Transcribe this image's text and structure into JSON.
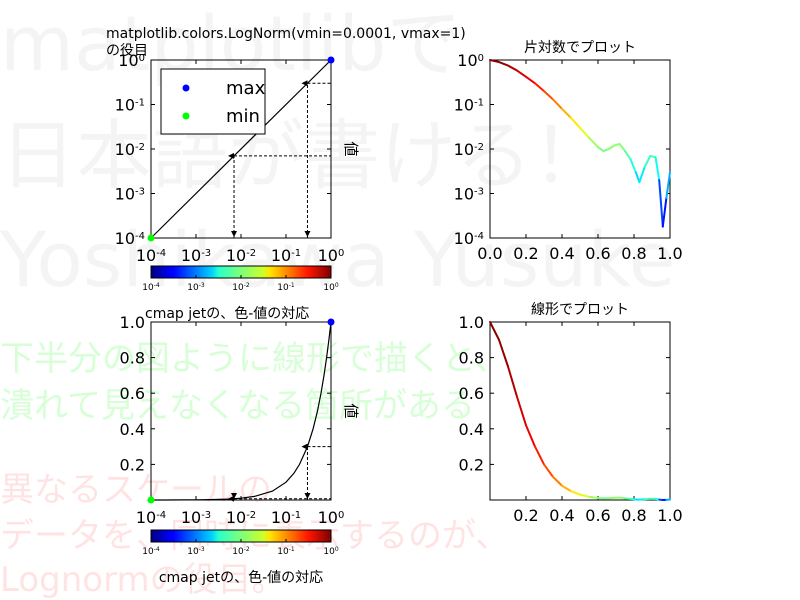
{
  "watermarks": {
    "big": [
      "matplotlibで",
      "日本語が書ける！",
      "Yoshikawa Yusuke"
    ],
    "green": [
      "下半分の図ように線形で描くと、",
      "潰れて見えなくなる箇所がある"
    ],
    "red": [
      "異なるスケールの",
      "データを、同時に表示するのが、",
      "Lognormの役目。"
    ]
  },
  "colors": {
    "marker_max": "#0000ff",
    "marker_min": "#00ff00"
  },
  "chart_data": [
    {
      "id": "log-map",
      "type": "line",
      "title": "matplotlib.colors.LogNorm(vmin=0.0001, vmax=1)",
      "title2": "の役目",
      "xscale": "log",
      "yscale": "log",
      "xlim": [
        0.0001,
        1
      ],
      "ylim": [
        0.0001,
        1
      ],
      "xticks": [
        0.0001,
        0.001,
        0.01,
        0.1,
        1
      ],
      "yticks": [
        0.0001,
        0.001,
        0.01,
        0.1,
        1
      ],
      "series": [
        {
          "x": [
            0.0001,
            1
          ],
          "y": [
            0.0001,
            1
          ]
        }
      ],
      "scatter": [
        {
          "name": "max",
          "x": 1,
          "y": 1,
          "color": "#0000ff"
        },
        {
          "name": "min",
          "x": 0.0001,
          "y": 0.0001,
          "color": "#00ff00"
        }
      ],
      "guides": [
        {
          "x": 0.007,
          "y": 0.007
        },
        {
          "x": 0.3,
          "y": 0.3
        }
      ],
      "legend": {
        "position": "upper-left",
        "entries": [
          "max",
          "min"
        ]
      },
      "ylabel": "値",
      "colorbar": {
        "ticks": [
          0.0001,
          0.001,
          0.01,
          0.1,
          1
        ],
        "label": ""
      }
    },
    {
      "id": "log-plot",
      "type": "line",
      "title": "片対数でプロット",
      "yscale": "log",
      "xlim": [
        0,
        1
      ],
      "ylim": [
        0.0001,
        1
      ],
      "xticks": [
        0,
        0.2,
        0.4,
        0.6,
        0.8,
        1
      ],
      "yticks": [
        0.0001,
        0.001,
        0.01,
        0.1,
        1
      ],
      "colormapped": true,
      "series": [
        {
          "x": [
            0,
            0.05,
            0.1,
            0.15,
            0.2,
            0.25,
            0.3,
            0.35,
            0.4,
            0.45,
            0.5,
            0.55,
            0.6,
            0.63,
            0.66,
            0.69,
            0.72,
            0.75,
            0.78,
            0.81,
            0.83,
            0.86,
            0.89,
            0.92,
            0.94,
            0.96,
            0.98,
            1.0
          ],
          "y": [
            1,
            0.9,
            0.75,
            0.58,
            0.42,
            0.3,
            0.2,
            0.13,
            0.08,
            0.05,
            0.03,
            0.018,
            0.011,
            0.009,
            0.01,
            0.012,
            0.013,
            0.009,
            0.006,
            0.003,
            0.0018,
            0.004,
            0.007,
            0.0065,
            0.002,
            0.00018,
            0.0008,
            0.003
          ]
        }
      ]
    },
    {
      "id": "linear-map",
      "type": "line",
      "title": "cmap jetの、色-値の対応",
      "xscale": "log",
      "xlim": [
        0.0001,
        1
      ],
      "ylim": [
        0,
        1
      ],
      "xticks": [
        0.0001,
        0.001,
        0.01,
        0.1,
        1
      ],
      "yticks": [
        0.2,
        0.4,
        0.6,
        0.8,
        1.0
      ],
      "series": [
        {
          "x": [
            0.0001,
            0.0002,
            0.0005,
            0.001,
            0.002,
            0.005,
            0.01,
            0.02,
            0.05,
            0.1,
            0.15,
            0.2,
            0.3,
            0.4,
            0.5,
            0.6,
            0.7,
            0.8,
            0.9,
            1
          ],
          "y": [
            0.0001,
            0.0002,
            0.0005,
            0.001,
            0.002,
            0.005,
            0.01,
            0.02,
            0.05,
            0.1,
            0.15,
            0.2,
            0.3,
            0.4,
            0.5,
            0.6,
            0.7,
            0.8,
            0.9,
            1
          ]
        }
      ],
      "scatter": [
        {
          "name": "max",
          "x": 1,
          "y": 1,
          "color": "#0000ff"
        },
        {
          "name": "min",
          "x": 0.0001,
          "y": 0.0001,
          "color": "#00ff00"
        }
      ],
      "guides": [
        {
          "x": 0.007,
          "y": 0.007
        },
        {
          "x": 0.3,
          "y": 0.3
        }
      ],
      "ylabel": "値",
      "colorbar": {
        "ticks": [
          0.0001,
          0.001,
          0.01,
          0.1,
          1
        ],
        "label": "cmap jetの、色-値の対応"
      }
    },
    {
      "id": "linear-plot",
      "type": "line",
      "title": "線形でプロット",
      "xlim": [
        0,
        1
      ],
      "ylim": [
        0,
        1
      ],
      "xticks": [
        0.2,
        0.4,
        0.6,
        0.8,
        1.0
      ],
      "yticks": [
        0.2,
        0.4,
        0.6,
        0.8,
        1.0
      ],
      "colormapped": true,
      "series": [
        {
          "x": [
            0,
            0.05,
            0.1,
            0.15,
            0.2,
            0.25,
            0.3,
            0.35,
            0.4,
            0.45,
            0.5,
            0.55,
            0.6,
            0.63,
            0.66,
            0.69,
            0.72,
            0.75,
            0.78,
            0.81,
            0.83,
            0.86,
            0.89,
            0.92,
            0.94,
            0.96,
            0.98,
            1.0
          ],
          "y": [
            1,
            0.9,
            0.75,
            0.58,
            0.42,
            0.3,
            0.2,
            0.13,
            0.08,
            0.05,
            0.03,
            0.018,
            0.011,
            0.009,
            0.01,
            0.012,
            0.013,
            0.009,
            0.006,
            0.003,
            0.0018,
            0.004,
            0.007,
            0.0065,
            0.002,
            0.00018,
            0.0008,
            0.003
          ]
        }
      ]
    }
  ]
}
